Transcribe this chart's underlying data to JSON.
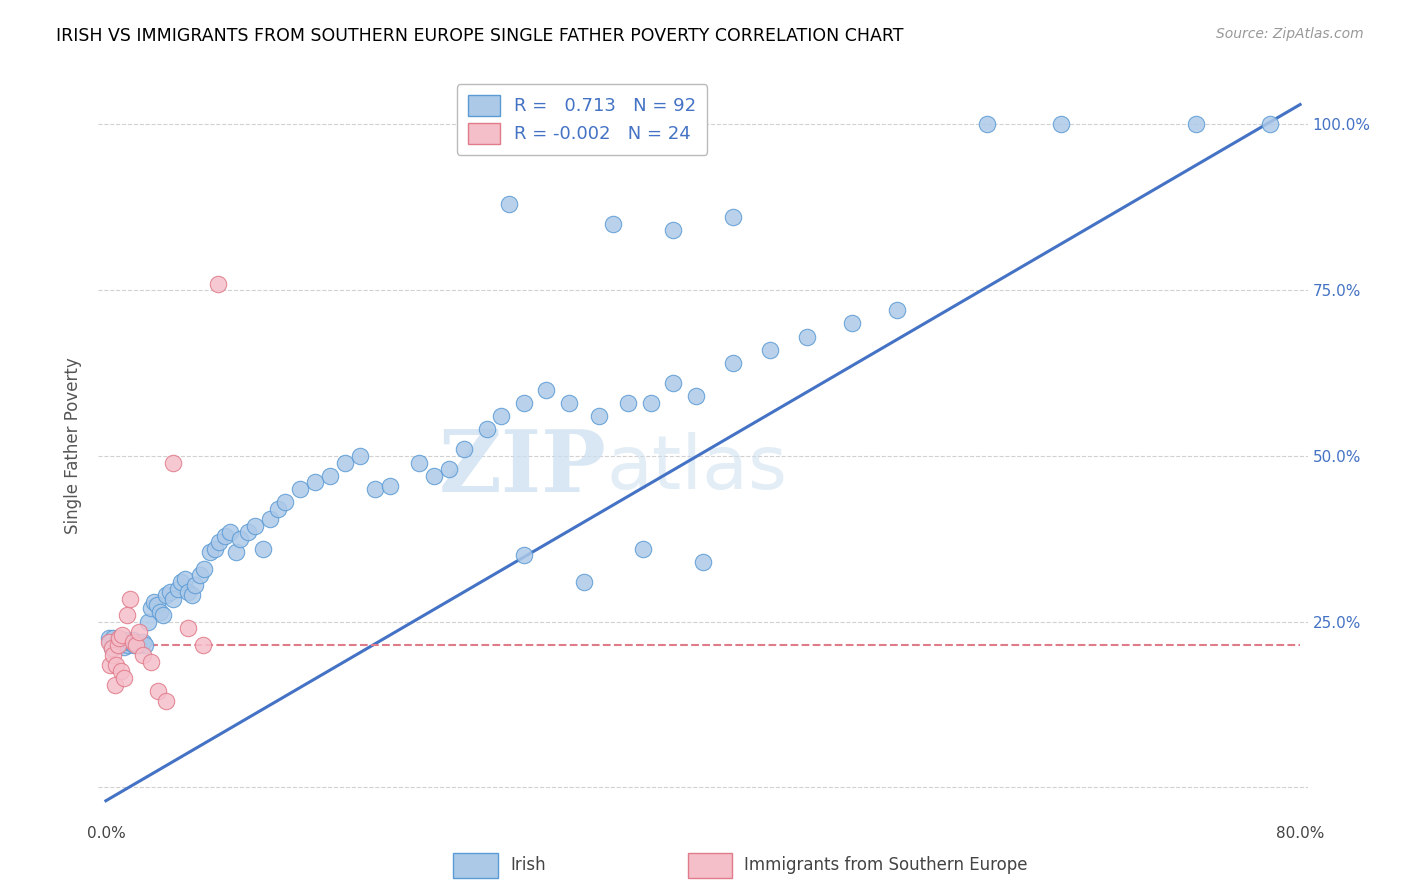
{
  "title": "IRISH VS IMMIGRANTS FROM SOUTHERN EUROPE SINGLE FATHER POVERTY CORRELATION CHART",
  "source": "Source: ZipAtlas.com",
  "ylabel": "Single Father Poverty",
  "xlim": [
    0.0,
    0.8
  ],
  "ylim": [
    0.0,
    1.05
  ],
  "irish_color": "#adc9e8",
  "irish_edge_color": "#5b9bd5",
  "southern_color": "#f5bfca",
  "southern_edge_color": "#e07b8a",
  "irish_R": 0.713,
  "irish_N": 92,
  "southern_R": -0.002,
  "southern_N": 24,
  "irish_line_color": "#4472c4",
  "southern_line_color": "#e07b8a",
  "watermark_zip": "ZIP",
  "watermark_atlas": "atlas",
  "legend_irish": "Irish",
  "legend_southern": "Immigrants from Southern Europe",
  "irish_line_x0": 0.0,
  "irish_line_y0": -0.02,
  "irish_line_x1": 0.8,
  "irish_line_y1": 1.03,
  "southern_line_y": 0.215,
  "irish_x": [
    0.002,
    0.003,
    0.004,
    0.005,
    0.006,
    0.007,
    0.008,
    0.009,
    0.01,
    0.011,
    0.012,
    0.013,
    0.014,
    0.015,
    0.016,
    0.017,
    0.018,
    0.019,
    0.02,
    0.021,
    0.022,
    0.023,
    0.025,
    0.026,
    0.028,
    0.03,
    0.032,
    0.034,
    0.036,
    0.038,
    0.04,
    0.043,
    0.045,
    0.048,
    0.05,
    0.053,
    0.055,
    0.058,
    0.06,
    0.063,
    0.066,
    0.07,
    0.073,
    0.076,
    0.08,
    0.083,
    0.087,
    0.09,
    0.095,
    0.1,
    0.105,
    0.11,
    0.115,
    0.12,
    0.13,
    0.14,
    0.15,
    0.16,
    0.17,
    0.18,
    0.19,
    0.21,
    0.22,
    0.23,
    0.24,
    0.255,
    0.265,
    0.28,
    0.295,
    0.31,
    0.33,
    0.35,
    0.365,
    0.38,
    0.395,
    0.42,
    0.445,
    0.47,
    0.5,
    0.53,
    0.28,
    0.32,
    0.36,
    0.4,
    0.34,
    0.38,
    0.42,
    0.27,
    0.59,
    0.64,
    0.73,
    0.78
  ],
  "irish_y": [
    0.225,
    0.22,
    0.21,
    0.225,
    0.215,
    0.218,
    0.222,
    0.22,
    0.215,
    0.218,
    0.212,
    0.222,
    0.219,
    0.215,
    0.22,
    0.218,
    0.222,
    0.215,
    0.218,
    0.22,
    0.215,
    0.218,
    0.22,
    0.215,
    0.25,
    0.27,
    0.28,
    0.275,
    0.265,
    0.26,
    0.29,
    0.295,
    0.285,
    0.3,
    0.31,
    0.315,
    0.295,
    0.29,
    0.305,
    0.32,
    0.33,
    0.355,
    0.36,
    0.37,
    0.38,
    0.385,
    0.355,
    0.375,
    0.385,
    0.395,
    0.36,
    0.405,
    0.42,
    0.43,
    0.45,
    0.46,
    0.47,
    0.49,
    0.5,
    0.45,
    0.455,
    0.49,
    0.47,
    0.48,
    0.51,
    0.54,
    0.56,
    0.58,
    0.6,
    0.58,
    0.56,
    0.58,
    0.58,
    0.61,
    0.59,
    0.64,
    0.66,
    0.68,
    0.7,
    0.72,
    0.35,
    0.31,
    0.36,
    0.34,
    0.85,
    0.84,
    0.86,
    0.88,
    1.0,
    1.0,
    1.0,
    1.0
  ],
  "southern_x": [
    0.002,
    0.003,
    0.004,
    0.005,
    0.006,
    0.007,
    0.008,
    0.009,
    0.01,
    0.011,
    0.012,
    0.014,
    0.016,
    0.018,
    0.02,
    0.022,
    0.025,
    0.03,
    0.035,
    0.04,
    0.045,
    0.055,
    0.065,
    0.075
  ],
  "southern_y": [
    0.22,
    0.185,
    0.21,
    0.2,
    0.155,
    0.185,
    0.215,
    0.225,
    0.175,
    0.23,
    0.165,
    0.26,
    0.285,
    0.22,
    0.215,
    0.235,
    0.2,
    0.19,
    0.145,
    0.13,
    0.49,
    0.24,
    0.215,
    0.76
  ]
}
